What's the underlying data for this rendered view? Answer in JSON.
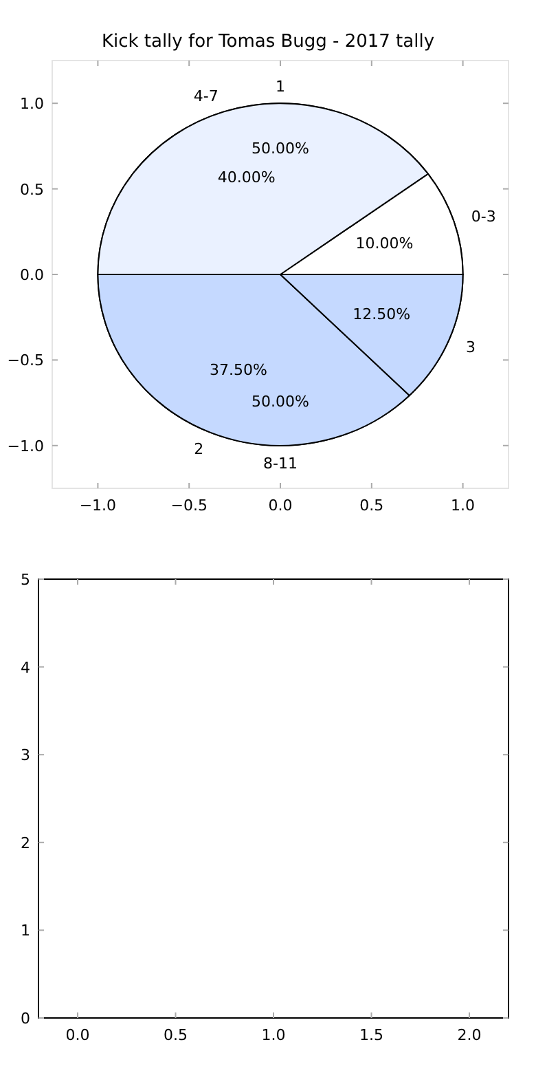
{
  "chart_data": [
    {
      "type": "scatter",
      "title": "Kick tally for Tomas Bugg - 2017 tally",
      "xlim": [
        -1.25,
        1.25
      ],
      "ylim": [
        -1.25,
        1.25
      ],
      "xticks": [
        {
          "value": -1,
          "label": "−1.0"
        },
        {
          "value": -0.5,
          "label": "−0.5"
        },
        {
          "value": 0,
          "label": "0.0"
        },
        {
          "value": 0.5,
          "label": "0.5"
        },
        {
          "value": 1,
          "label": "1.0"
        }
      ],
      "yticks": [
        {
          "value": -1,
          "label": "−1.0"
        },
        {
          "value": -0.5,
          "label": "−0.5"
        },
        {
          "value": 0,
          "label": "0.0"
        },
        {
          "value": 0.5,
          "label": "0.5"
        },
        {
          "value": 1,
          "label": "1.0"
        }
      ]
    },
    {
      "type": "pie",
      "categories": [
        "0-3",
        "4-7",
        "2",
        "3"
      ],
      "values": [
        10,
        40,
        37.5,
        12.5
      ],
      "colors": [
        "#ffffff",
        "#eaf1ff",
        "#c5d9ff",
        "#c5d9ff"
      ],
      "value_labels": [
        "10.00%",
        "40.00%",
        "37.50%",
        "12.50%"
      ]
    },
    {
      "type": "pie",
      "categories": [
        "1",
        "8-11"
      ],
      "values": [
        50,
        50
      ],
      "colors": [
        "#eaf1ff",
        "#c5d9ff"
      ],
      "value_labels": [
        "50.00%",
        "50.00%"
      ]
    },
    {
      "type": "scatter",
      "xlim": [
        -0.2,
        2.2
      ],
      "ylim": [
        0,
        5
      ],
      "xticks": [
        {
          "value": 0,
          "label": "0.0"
        },
        {
          "value": 0.5,
          "label": "0.5"
        },
        {
          "value": 1,
          "label": "1.0"
        },
        {
          "value": 1.5,
          "label": "1.5"
        },
        {
          "value": 2,
          "label": "2.0"
        }
      ],
      "yticks": [
        0,
        1,
        2,
        3,
        4,
        5
      ]
    }
  ]
}
